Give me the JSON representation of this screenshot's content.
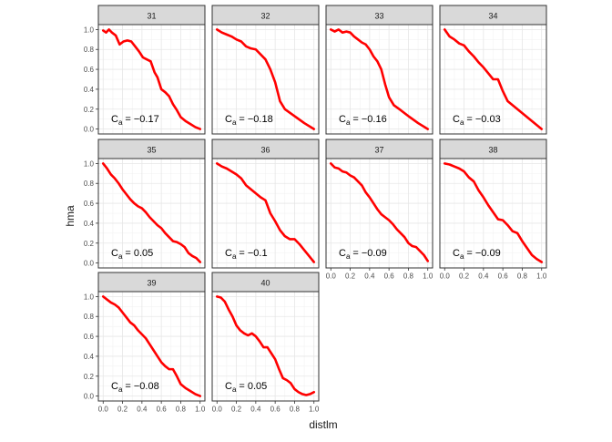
{
  "chart_data": {
    "type": "line",
    "layout": "facet-grid",
    "xlabel": "distlm",
    "ylabel": "hma",
    "xlim": [
      0,
      1
    ],
    "ylim": [
      0,
      1
    ],
    "x_ticks": [
      "0.0",
      "0.2",
      "0.4",
      "0.6",
      "0.8",
      "1.0"
    ],
    "y_ticks": [
      "0.0",
      "0.2",
      "0.4",
      "0.6",
      "0.8",
      "1.0"
    ],
    "grid": true,
    "line_color": "#ff0000",
    "strip_fill": "#d9d9d9",
    "panels": [
      {
        "label": "31",
        "annotation": "= −0.17",
        "x": [
          0,
          0.03,
          0.06,
          0.09,
          0.13,
          0.17,
          0.21,
          0.25,
          0.29,
          0.33,
          0.37,
          0.41,
          0.45,
          0.49,
          0.53,
          0.56,
          0.6,
          0.64,
          0.68,
          0.72,
          0.76,
          0.8,
          0.85,
          0.9,
          0.95,
          1.0
        ],
        "y": [
          0.99,
          0.97,
          1.0,
          0.97,
          0.94,
          0.85,
          0.88,
          0.89,
          0.88,
          0.83,
          0.78,
          0.72,
          0.7,
          0.68,
          0.57,
          0.52,
          0.4,
          0.37,
          0.33,
          0.25,
          0.19,
          0.12,
          0.08,
          0.05,
          0.02,
          0.0
        ]
      },
      {
        "label": "32",
        "annotation": "= −0.18",
        "x": [
          0,
          0.05,
          0.1,
          0.15,
          0.2,
          0.25,
          0.3,
          0.35,
          0.4,
          0.5,
          0.55,
          0.6,
          0.65,
          0.7,
          0.8,
          0.9,
          1.0
        ],
        "y": [
          1.0,
          0.97,
          0.95,
          0.93,
          0.9,
          0.88,
          0.83,
          0.81,
          0.8,
          0.7,
          0.6,
          0.47,
          0.28,
          0.2,
          0.13,
          0.06,
          0.0
        ]
      },
      {
        "label": "33",
        "annotation": "= −0.16",
        "x": [
          0,
          0.04,
          0.08,
          0.12,
          0.16,
          0.2,
          0.24,
          0.28,
          0.32,
          0.36,
          0.4,
          0.44,
          0.48,
          0.52,
          0.56,
          0.6,
          0.65,
          0.72,
          0.8,
          0.9,
          1.0
        ],
        "y": [
          1.0,
          0.98,
          1.0,
          0.97,
          0.98,
          0.97,
          0.93,
          0.9,
          0.87,
          0.85,
          0.8,
          0.73,
          0.68,
          0.6,
          0.45,
          0.32,
          0.24,
          0.19,
          0.13,
          0.06,
          0.0
        ]
      },
      {
        "label": "34",
        "annotation": "= −0.03",
        "x": [
          0,
          0.05,
          0.1,
          0.15,
          0.2,
          0.25,
          0.3,
          0.35,
          0.4,
          0.45,
          0.5,
          0.55,
          0.6,
          0.65,
          0.7,
          0.8,
          0.9,
          1.0
        ],
        "y": [
          1.0,
          0.93,
          0.9,
          0.86,
          0.84,
          0.78,
          0.73,
          0.67,
          0.62,
          0.56,
          0.5,
          0.5,
          0.38,
          0.28,
          0.24,
          0.16,
          0.08,
          0.0
        ]
      },
      {
        "label": "35",
        "annotation": "= 0.05",
        "x": [
          0,
          0.04,
          0.08,
          0.12,
          0.16,
          0.2,
          0.24,
          0.28,
          0.32,
          0.36,
          0.4,
          0.44,
          0.48,
          0.52,
          0.56,
          0.6,
          0.64,
          0.68,
          0.72,
          0.76,
          0.8,
          0.84,
          0.88,
          0.92,
          0.96,
          1.0
        ],
        "y": [
          1.0,
          0.95,
          0.89,
          0.85,
          0.8,
          0.74,
          0.69,
          0.64,
          0.6,
          0.57,
          0.55,
          0.51,
          0.46,
          0.42,
          0.38,
          0.35,
          0.3,
          0.26,
          0.22,
          0.21,
          0.19,
          0.16,
          0.1,
          0.07,
          0.05,
          0.01
        ]
      },
      {
        "label": "36",
        "annotation": "= −0.1",
        "x": [
          0,
          0.05,
          0.1,
          0.15,
          0.2,
          0.25,
          0.3,
          0.35,
          0.4,
          0.45,
          0.5,
          0.55,
          0.6,
          0.65,
          0.7,
          0.75,
          0.8,
          0.85,
          0.9,
          0.95,
          1.0
        ],
        "y": [
          1.0,
          0.97,
          0.95,
          0.92,
          0.89,
          0.85,
          0.78,
          0.74,
          0.7,
          0.66,
          0.63,
          0.5,
          0.42,
          0.33,
          0.27,
          0.24,
          0.24,
          0.19,
          0.13,
          0.07,
          0.01
        ]
      },
      {
        "label": "37",
        "annotation": "= −0.09",
        "x": [
          0,
          0.04,
          0.08,
          0.12,
          0.16,
          0.2,
          0.24,
          0.28,
          0.32,
          0.36,
          0.4,
          0.44,
          0.48,
          0.52,
          0.56,
          0.6,
          0.64,
          0.68,
          0.72,
          0.76,
          0.8,
          0.84,
          0.88,
          0.92,
          0.96,
          1.0
        ],
        "y": [
          1.0,
          0.96,
          0.95,
          0.92,
          0.91,
          0.88,
          0.86,
          0.82,
          0.78,
          0.71,
          0.66,
          0.6,
          0.54,
          0.49,
          0.46,
          0.43,
          0.39,
          0.34,
          0.3,
          0.26,
          0.2,
          0.17,
          0.16,
          0.12,
          0.08,
          0.02
        ]
      },
      {
        "label": "38",
        "annotation": "= −0.09",
        "x": [
          0,
          0.05,
          0.1,
          0.15,
          0.2,
          0.25,
          0.3,
          0.35,
          0.4,
          0.45,
          0.5,
          0.55,
          0.6,
          0.65,
          0.7,
          0.75,
          0.8,
          0.85,
          0.9,
          0.95,
          1.0
        ],
        "y": [
          1.0,
          0.99,
          0.97,
          0.95,
          0.92,
          0.86,
          0.82,
          0.73,
          0.66,
          0.58,
          0.51,
          0.44,
          0.43,
          0.38,
          0.32,
          0.3,
          0.22,
          0.15,
          0.08,
          0.04,
          0.01
        ]
      },
      {
        "label": "39",
        "annotation": "= −0.08",
        "x": [
          0,
          0.04,
          0.08,
          0.12,
          0.16,
          0.2,
          0.24,
          0.28,
          0.32,
          0.36,
          0.4,
          0.44,
          0.48,
          0.52,
          0.56,
          0.6,
          0.64,
          0.68,
          0.72,
          0.76,
          0.8,
          0.85,
          0.9,
          0.95,
          1.0
        ],
        "y": [
          1.0,
          0.97,
          0.94,
          0.92,
          0.89,
          0.84,
          0.79,
          0.74,
          0.71,
          0.66,
          0.62,
          0.58,
          0.52,
          0.46,
          0.4,
          0.34,
          0.3,
          0.27,
          0.27,
          0.2,
          0.12,
          0.08,
          0.05,
          0.02,
          0.0
        ]
      },
      {
        "label": "40",
        "annotation": "= 0.05",
        "x": [
          0,
          0.04,
          0.08,
          0.12,
          0.16,
          0.2,
          0.24,
          0.28,
          0.32,
          0.36,
          0.4,
          0.44,
          0.48,
          0.52,
          0.56,
          0.6,
          0.64,
          0.68,
          0.72,
          0.76,
          0.8,
          0.84,
          0.88,
          0.92,
          0.96,
          1.0
        ],
        "y": [
          1.0,
          0.99,
          0.95,
          0.87,
          0.8,
          0.71,
          0.66,
          0.63,
          0.61,
          0.63,
          0.6,
          0.55,
          0.49,
          0.49,
          0.43,
          0.37,
          0.27,
          0.18,
          0.16,
          0.13,
          0.07,
          0.04,
          0.02,
          0.01,
          0.02,
          0.04
        ]
      }
    ]
  }
}
